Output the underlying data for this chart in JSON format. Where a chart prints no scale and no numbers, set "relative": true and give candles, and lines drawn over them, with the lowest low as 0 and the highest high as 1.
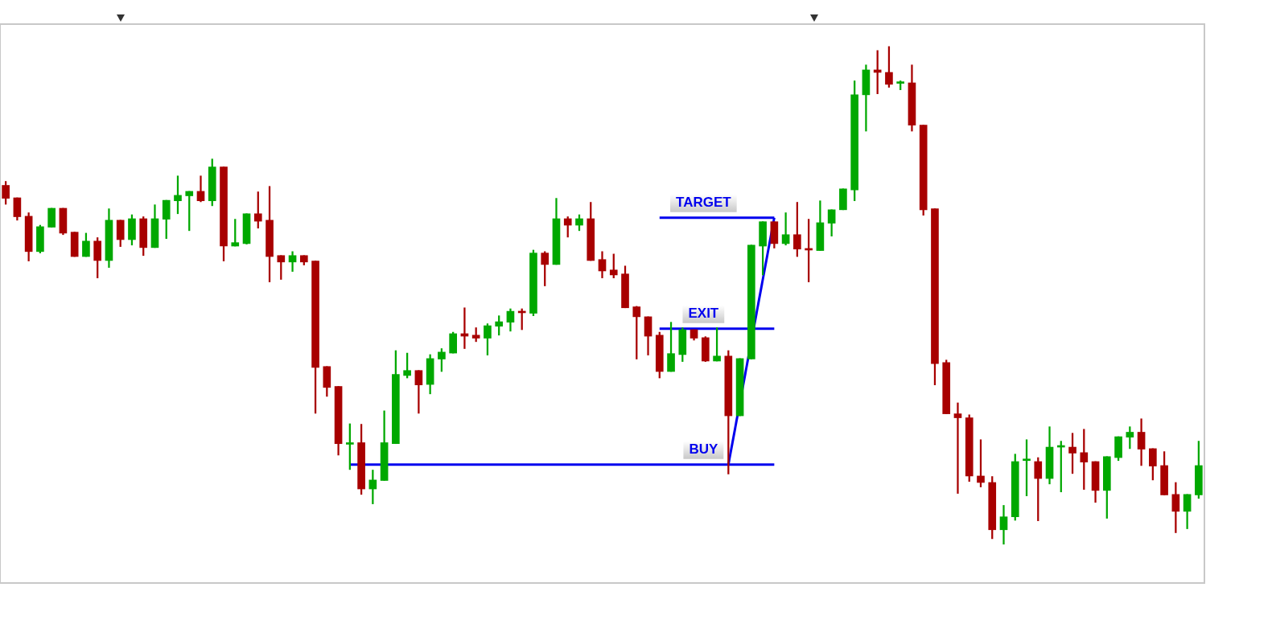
{
  "chart_data": {
    "type": "candlestick",
    "relative": true,
    "categories": [
      null,
      null,
      null,
      null,
      null,
      null,
      null,
      null,
      null,
      null,
      null,
      null,
      null,
      null,
      null,
      null,
      null,
      null,
      null,
      null,
      null,
      null,
      null,
      null,
      null,
      null,
      null,
      null,
      null,
      null,
      null,
      null,
      null,
      null,
      null,
      null,
      null,
      null,
      null,
      null,
      null,
      null,
      null,
      null,
      null,
      null,
      null,
      null,
      null,
      null,
      null,
      null,
      null,
      null,
      null,
      null,
      null,
      null,
      null,
      null,
      null,
      null,
      null,
      null,
      null,
      null,
      null,
      null,
      null,
      null,
      null,
      null,
      null,
      null,
      null,
      null,
      null,
      null,
      null,
      null,
      null,
      null,
      null,
      null,
      null,
      null,
      null,
      null,
      null,
      null,
      null,
      null,
      null,
      null,
      null,
      null,
      null,
      null,
      null,
      null,
      null,
      null,
      null,
      null,
      null
    ],
    "ohlc": [
      [
        0.721,
        0.729,
        0.683,
        0.695
      ],
      [
        0.696,
        0.696,
        0.651,
        0.658
      ],
      [
        0.659,
        0.666,
        0.569,
        0.588
      ],
      [
        0.588,
        0.641,
        0.585,
        0.638
      ],
      [
        0.637,
        0.675,
        0.637,
        0.675
      ],
      [
        0.675,
        0.675,
        0.622,
        0.625
      ],
      [
        0.627,
        0.627,
        0.578,
        0.578
      ],
      [
        0.578,
        0.625,
        0.578,
        0.609
      ],
      [
        0.609,
        0.616,
        0.535,
        0.57
      ],
      [
        0.57,
        0.674,
        0.556,
        0.651
      ],
      [
        0.651,
        0.651,
        0.598,
        0.612
      ],
      [
        0.612,
        0.662,
        0.601,
        0.654
      ],
      [
        0.654,
        0.658,
        0.58,
        0.596
      ],
      [
        0.596,
        0.682,
        0.596,
        0.654
      ],
      [
        0.653,
        0.691,
        0.614,
        0.691
      ],
      [
        0.69,
        0.74,
        0.664,
        0.701
      ],
      [
        0.7,
        0.709,
        0.63,
        0.709
      ],
      [
        0.709,
        0.74,
        0.688,
        0.69
      ],
      [
        0.69,
        0.774,
        0.68,
        0.758
      ],
      [
        0.758,
        0.758,
        0.569,
        0.599
      ],
      [
        0.599,
        0.653,
        0.599,
        0.606
      ],
      [
        0.604,
        0.664,
        0.603,
        0.664
      ],
      [
        0.664,
        0.708,
        0.635,
        0.649
      ],
      [
        0.651,
        0.719,
        0.527,
        0.578
      ],
      [
        0.58,
        0.58,
        0.532,
        0.567
      ],
      [
        0.567,
        0.588,
        0.548,
        0.58
      ],
      [
        0.58,
        0.58,
        0.561,
        0.567
      ],
      [
        0.569,
        0.569,
        0.263,
        0.355
      ],
      [
        0.357,
        0.357,
        0.297,
        0.315
      ],
      [
        0.317,
        0.317,
        0.179,
        0.202
      ],
      [
        0.204,
        0.242,
        0.15,
        0.204
      ],
      [
        0.204,
        0.241,
        0.1,
        0.111
      ],
      [
        0.111,
        0.149,
        0.081,
        0.129
      ],
      [
        0.128,
        0.268,
        0.128,
        0.204
      ],
      [
        0.202,
        0.389,
        0.202,
        0.341
      ],
      [
        0.339,
        0.384,
        0.334,
        0.349
      ],
      [
        0.349,
        0.349,
        0.263,
        0.32
      ],
      [
        0.321,
        0.381,
        0.302,
        0.373
      ],
      [
        0.372,
        0.393,
        0.347,
        0.386
      ],
      [
        0.384,
        0.426,
        0.384,
        0.423
      ],
      [
        0.423,
        0.475,
        0.393,
        0.418
      ],
      [
        0.42,
        0.435,
        0.407,
        0.414
      ],
      [
        0.414,
        0.443,
        0.38,
        0.439
      ],
      [
        0.438,
        0.459,
        0.42,
        0.447
      ],
      [
        0.446,
        0.473,
        0.428,
        0.468
      ],
      [
        0.468,
        0.473,
        0.431,
        0.465
      ],
      [
        0.464,
        0.591,
        0.459,
        0.585
      ],
      [
        0.585,
        0.588,
        0.519,
        0.562
      ],
      [
        0.562,
        0.695,
        0.562,
        0.654
      ],
      [
        0.654,
        0.658,
        0.617,
        0.641
      ],
      [
        0.641,
        0.662,
        0.63,
        0.654
      ],
      [
        0.654,
        0.687,
        0.57,
        0.57
      ],
      [
        0.572,
        0.588,
        0.535,
        0.549
      ],
      [
        0.551,
        0.583,
        0.535,
        0.541
      ],
      [
        0.543,
        0.559,
        0.475,
        0.475
      ],
      [
        0.477,
        0.478,
        0.372,
        0.457
      ],
      [
        0.457,
        0.457,
        0.38,
        0.418
      ],
      [
        0.42,
        0.426,
        0.334,
        0.347
      ],
      [
        0.347,
        0.446,
        0.347,
        0.383
      ],
      [
        0.381,
        0.435,
        0.367,
        0.431
      ],
      [
        0.431,
        0.431,
        0.41,
        0.414
      ],
      [
        0.415,
        0.417,
        0.367,
        0.368
      ],
      [
        0.368,
        0.435,
        0.368,
        0.378
      ],
      [
        0.378,
        0.389,
        0.141,
        0.258
      ],
      [
        0.258,
        0.373,
        0.258,
        0.373
      ],
      [
        0.372,
        0.601,
        0.372,
        0.601
      ],
      [
        0.599,
        0.648,
        0.541,
        0.648
      ],
      [
        0.648,
        0.648,
        0.595,
        0.604
      ],
      [
        0.604,
        0.666,
        0.601,
        0.622
      ],
      [
        0.622,
        0.687,
        0.578,
        0.593
      ],
      [
        0.593,
        0.653,
        0.527,
        0.591
      ],
      [
        0.59,
        0.69,
        0.59,
        0.646
      ],
      [
        0.645,
        0.672,
        0.619,
        0.672
      ],
      [
        0.672,
        0.714,
        0.672,
        0.714
      ],
      [
        0.712,
        0.931,
        0.69,
        0.903
      ],
      [
        0.903,
        0.963,
        0.83,
        0.953
      ],
      [
        0.953,
        0.992,
        0.905,
        0.948
      ],
      [
        0.948,
        1,
        0.918,
        0.924
      ],
      [
        0.926,
        0.931,
        0.913,
        0.927
      ],
      [
        0.927,
        0.963,
        0.83,
        0.842
      ],
      [
        0.842,
        0.842,
        0.661,
        0.672
      ],
      [
        0.674,
        0.674,
        0.32,
        0.363
      ],
      [
        0.365,
        0.37,
        0.262,
        0.262
      ],
      [
        0.262,
        0.284,
        0.102,
        0.254
      ],
      [
        0.254,
        0.26,
        0.126,
        0.137
      ],
      [
        0.137,
        0.21,
        0.115,
        0.124
      ],
      [
        0.124,
        0.136,
        0.011,
        0.029
      ],
      [
        0.029,
        0.078,
        0,
        0.055
      ],
      [
        0.055,
        0.181,
        0.048,
        0.166
      ],
      [
        0.168,
        0.21,
        0.097,
        0.17
      ],
      [
        0.166,
        0.174,
        0.047,
        0.132
      ],
      [
        0.132,
        0.236,
        0.121,
        0.195
      ],
      [
        0.195,
        0.207,
        0.105,
        0.197
      ],
      [
        0.195,
        0.223,
        0.142,
        0.183
      ],
      [
        0.184,
        0.231,
        0.11,
        0.165
      ],
      [
        0.166,
        0.166,
        0.084,
        0.108
      ],
      [
        0.108,
        0.176,
        0.052,
        0.176
      ],
      [
        0.174,
        0.216,
        0.168,
        0.216
      ],
      [
        0.215,
        0.236,
        0.192,
        0.225
      ],
      [
        0.225,
        0.252,
        0.158,
        0.191
      ],
      [
        0.192,
        0.192,
        0.129,
        0.157
      ],
      [
        0.158,
        0.186,
        0.099,
        0.099
      ],
      [
        0.1,
        0.124,
        0.023,
        0.066
      ],
      [
        0.066,
        0.1,
        0.031,
        0.1
      ],
      [
        0.099,
        0.207,
        0.092,
        0.158
      ]
    ],
    "colors": [
      "#a80000",
      "#a80000",
      "#a80000",
      "#00a800",
      "#00a800",
      "#a80000",
      "#a80000",
      "#00a800",
      "#a80000",
      "#00a800",
      "#a80000",
      "#00a800",
      "#a80000",
      "#00a800",
      "#00a800",
      "#00a800",
      "#00a800",
      "#a80000",
      "#00a800",
      "#a80000",
      "#00a800",
      "#00a800",
      "#a80000",
      "#a80000",
      "#a80000",
      "#00a800",
      "#a80000",
      "#a80000",
      "#a80000",
      "#a80000",
      "#00a800",
      "#a80000",
      "#00a800",
      "#00a800",
      "#00a800",
      "#00a800",
      "#a80000",
      "#00a800",
      "#00a800",
      "#00a800",
      "#a80000",
      "#a80000",
      "#00a800",
      "#00a800",
      "#00a800",
      "#a80000",
      "#00a800",
      "#a80000",
      "#00a800",
      "#a80000",
      "#00a800",
      "#a80000",
      "#a80000",
      "#a80000",
      "#a80000",
      "#a80000",
      "#a80000",
      "#a80000",
      "#00a800",
      "#00a800",
      "#a80000",
      "#a80000",
      "#00a800",
      "#a80000",
      "#00a800",
      "#00a800",
      "#00a800",
      "#a80000",
      "#00a800",
      "#a80000",
      "#a80000",
      "#00a800",
      "#00a800",
      "#00a800",
      "#00a800",
      "#00a800",
      "#a80000",
      "#a80000",
      "#00a800",
      "#a80000",
      "#a80000",
      "#a80000",
      "#a80000",
      "#a80000",
      "#a80000",
      "#a80000",
      "#a80000",
      "#00a800",
      "#00a800",
      "#00a800",
      "#a80000",
      "#00a800",
      "#00a800",
      "#a80000",
      "#a80000",
      "#a80000",
      "#00a800",
      "#00a800",
      "#00a800",
      "#a80000",
      "#a80000",
      "#a80000",
      "#a80000",
      "#00a800",
      "#00a800"
    ],
    "series": [
      {
        "type": "line",
        "name": "TARGET",
        "color": "#0000ee",
        "values": [
          null,
          null,
          null,
          null,
          null,
          null,
          null,
          null,
          null,
          null,
          null,
          null,
          null,
          null,
          null,
          null,
          null,
          null,
          null,
          null,
          null,
          null,
          null,
          null,
          null,
          null,
          null,
          null,
          null,
          null,
          null,
          null,
          null,
          null,
          null,
          null,
          null,
          null,
          null,
          null,
          null,
          null,
          null,
          null,
          null,
          null,
          null,
          null,
          null,
          null,
          null,
          null,
          null,
          null,
          null,
          null,
          null,
          0.656,
          null,
          null,
          null,
          null,
          null,
          null,
          null,
          null,
          null,
          0.656,
          null,
          null,
          null,
          null,
          null,
          null,
          null,
          null,
          null,
          null,
          null,
          null,
          null,
          null,
          null,
          null,
          null,
          null,
          null,
          null,
          null,
          null,
          null,
          null,
          null,
          null,
          null,
          null,
          null,
          null,
          null,
          null,
          null,
          null,
          null,
          null,
          null
        ]
      },
      {
        "type": "line",
        "name": "EXIT",
        "color": "#0000ee",
        "values": [
          null,
          null,
          null,
          null,
          null,
          null,
          null,
          null,
          null,
          null,
          null,
          null,
          null,
          null,
          null,
          null,
          null,
          null,
          null,
          null,
          null,
          null,
          null,
          null,
          null,
          null,
          null,
          null,
          null,
          null,
          null,
          null,
          null,
          null,
          null,
          null,
          null,
          null,
          null,
          null,
          null,
          null,
          null,
          null,
          null,
          null,
          null,
          null,
          null,
          null,
          null,
          null,
          null,
          null,
          null,
          null,
          null,
          0.433,
          null,
          null,
          null,
          null,
          null,
          null,
          null,
          null,
          null,
          0.433,
          null,
          null,
          null,
          null,
          null,
          null,
          null,
          null,
          null,
          null,
          null,
          null,
          null,
          null,
          null,
          null,
          null,
          null,
          null,
          null,
          null,
          null,
          null,
          null,
          null,
          null,
          null,
          null,
          null,
          null,
          null,
          null,
          null,
          null,
          null,
          null,
          null
        ]
      },
      {
        "type": "line",
        "name": "BUY",
        "color": "#0000ee",
        "values": [
          null,
          null,
          null,
          null,
          null,
          null,
          null,
          null,
          null,
          null,
          null,
          null,
          null,
          null,
          null,
          null,
          null,
          null,
          null,
          null,
          null,
          null,
          null,
          null,
          null,
          null,
          null,
          null,
          null,
          null,
          0.16,
          null,
          null,
          null,
          null,
          null,
          null,
          null,
          null,
          null,
          null,
          null,
          null,
          null,
          null,
          null,
          null,
          null,
          null,
          null,
          null,
          null,
          null,
          null,
          null,
          null,
          null,
          null,
          null,
          null,
          null,
          null,
          null,
          null,
          null,
          null,
          null,
          0.16,
          null,
          null,
          null,
          null,
          null,
          null,
          null,
          null,
          null,
          null,
          null,
          null,
          null,
          null,
          null,
          null,
          null,
          null,
          null,
          null,
          null,
          null,
          null,
          null,
          null,
          null,
          null,
          null,
          null,
          null,
          null,
          null,
          null,
          null,
          null,
          null,
          null
        ]
      },
      {
        "type": "line",
        "color": "#0000ee",
        "values": [
          null,
          null,
          null,
          null,
          null,
          null,
          null,
          null,
          null,
          null,
          null,
          null,
          null,
          null,
          null,
          null,
          null,
          null,
          null,
          null,
          null,
          null,
          null,
          null,
          null,
          null,
          null,
          null,
          null,
          null,
          null,
          null,
          null,
          null,
          null,
          null,
          null,
          null,
          null,
          null,
          null,
          null,
          null,
          null,
          null,
          null,
          null,
          null,
          null,
          null,
          null,
          null,
          null,
          null,
          null,
          null,
          null,
          null,
          null,
          null,
          null,
          null,
          null,
          0.16,
          null,
          null,
          null,
          0.656,
          null,
          null,
          null,
          null,
          null,
          null,
          null,
          null,
          null,
          null,
          null,
          null,
          null,
          null,
          null,
          null,
          null,
          null,
          null,
          null,
          null,
          null,
          null,
          null,
          null,
          null,
          null,
          null,
          null,
          null,
          null,
          null,
          null,
          null,
          null,
          null,
          null
        ]
      }
    ]
  }
}
